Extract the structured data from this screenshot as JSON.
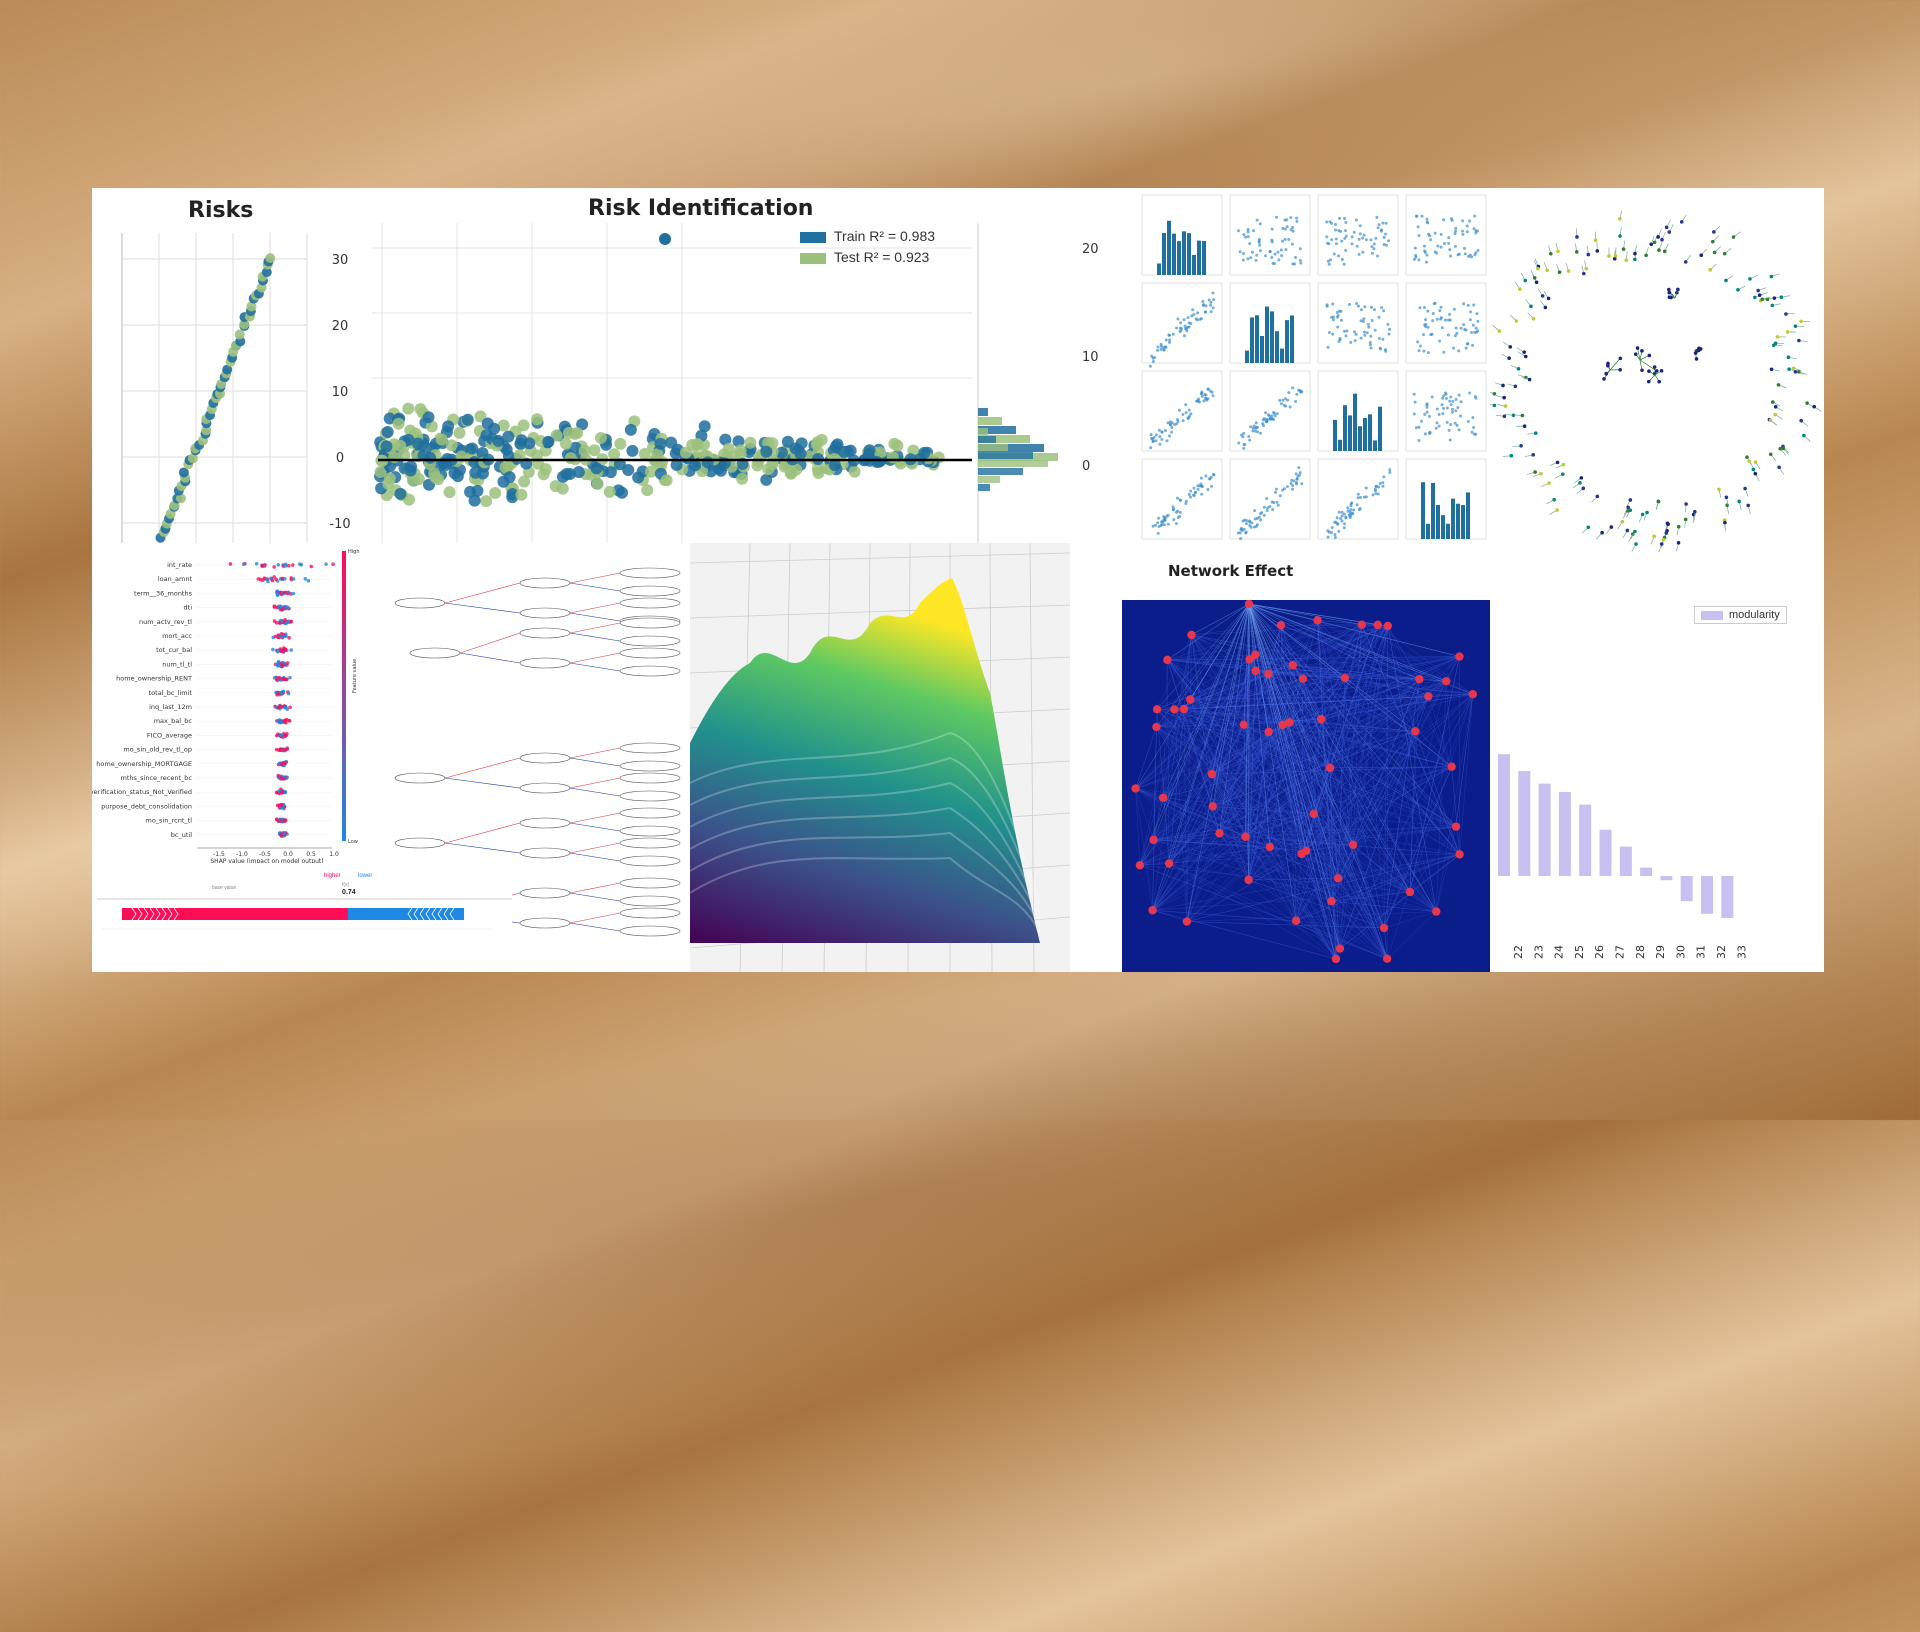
{
  "colors": {
    "train": "#1f6f9f",
    "test": "#9cc17d",
    "shap_high": "#ff0d57",
    "shap_low": "#1e88e5",
    "net_node": "#e8364c",
    "net_edge": "#1a2f9a",
    "bar": "#c7c0f0"
  },
  "risks": {
    "title": "Risks",
    "yticks": [
      "30",
      "20",
      "10",
      "0",
      "-10"
    ]
  },
  "risk_id": {
    "title": "Risk Identification",
    "legend_train": "Train",
    "legend_test": "Test",
    "legend_train_r2": "R² = 0.983",
    "legend_test_r2": "R² = 0.923",
    "rticks": [
      "20",
      "10",
      "0"
    ]
  },
  "shap": {
    "features": [
      "int_rate",
      "loan_amnt",
      "term__36_months",
      "dti",
      "num_actv_rev_tl",
      "mort_acc",
      "tot_cur_bal",
      "num_tl_tl",
      "home_ownership_RENT",
      "total_bc_limit",
      "inq_last_12m",
      "max_bal_bc",
      "FICO_average",
      "mo_sin_old_rev_tl_op",
      "home_ownership_MORTGAGE",
      "mths_since_recent_bc",
      "verification_status_Not_Verified",
      "purpose_debt_consolidation",
      "mo_sin_rcnt_tl",
      "bc_util"
    ],
    "xticks": [
      "-1.5",
      "-1.0",
      "-0.5",
      "0.0",
      "0.5",
      "1.0"
    ],
    "xlabel": "SHAP value (impact on model output)",
    "cbar_high": "High",
    "cbar_low": "Low",
    "cbar_label": "Feature value"
  },
  "force": {
    "higher": "higher",
    "lower": "lower",
    "fx_label": "f(x)",
    "fx_value": "0.74",
    "base_label": "base value"
  },
  "pairplot": {
    "title": "Network Effect"
  },
  "modularity": {
    "legend": "modularity",
    "categories": [
      "22",
      "23",
      "24",
      "25",
      "26",
      "27",
      "28",
      "29",
      "30",
      "31",
      "32",
      "33"
    ]
  },
  "chart_data": [
    {
      "type": "line",
      "title": "Risks",
      "ylim": [
        -12,
        32
      ],
      "ticks": [
        30,
        20,
        10,
        0,
        -10
      ]
    },
    {
      "type": "scatter",
      "title": "Risk Identification",
      "series": [
        {
          "name": "Train R² = 0.983"
        },
        {
          "name": "Test R² = 0.923"
        }
      ],
      "yticks": [
        20,
        10,
        0
      ]
    },
    {
      "type": "scatter",
      "title": "Network Effect"
    },
    {
      "type": "bar",
      "series": [
        {
          "name": "modularity",
          "values": [
            0.29,
            0.25,
            0.22,
            0.2,
            0.17,
            0.11,
            0.07,
            0.02,
            -0.01,
            -0.06,
            -0.09,
            -0.1
          ]
        }
      ],
      "categories": [
        "22",
        "23",
        "24",
        "25",
        "26",
        "27",
        "28",
        "29",
        "30",
        "31",
        "32",
        "33"
      ]
    }
  ]
}
